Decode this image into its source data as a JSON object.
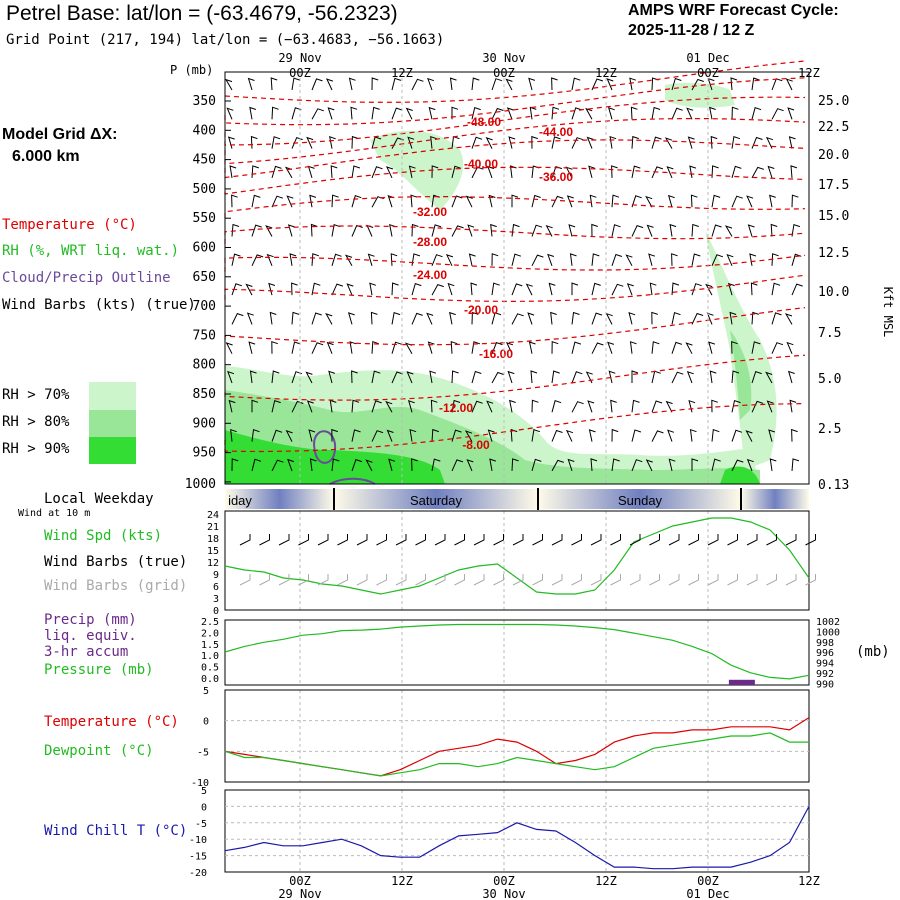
{
  "header": {
    "title": "Petrel Base:  lat/lon = (-63.4679, -56.2323)",
    "grid_point": "Grid Point (217, 194) lat/lon = (−63.4683, −56.1663)",
    "cycle_label": "AMPS WRF Forecast Cycle:",
    "cycle_time": "2025-11-28 / 12  Z"
  },
  "model": {
    "grid_label": "Model Grid ΔX:",
    "grid_value": "6.000 km"
  },
  "legend": {
    "temperature": "Temperature (°C)",
    "rh": "RH (%, WRT liq. wat.)",
    "cloud": "Cloud/Precip Outline",
    "wind": "Wind Barbs (kts) (true)",
    "rh70": "RH > 70%",
    "rh80": "RH > 80%",
    "rh90": "RH > 90%",
    "local_weekday": "Local Weekday",
    "wind_10m": "Wind at 10 m",
    "wind_spd": "Wind Spd (kts)",
    "wind_barbs_true": "Wind Barbs (true)",
    "wind_barbs_grid": "Wind Barbs (grid)",
    "precip": "Precip (mm)",
    "precip2": "liq. equiv.",
    "precip3": "3-hr accum",
    "pressure": "Pressure (mb)",
    "pressure_unit": "(mb)",
    "sfc_temp": "Temperature (°C)",
    "dewpoint": "Dewpoint (°C)",
    "windchill": "Wind Chill T (°C)"
  },
  "colors": {
    "temp": "#dd0000",
    "rh70": "#ccf5cc",
    "rh80": "#99e699",
    "rh90": "#33dd33",
    "cloud": "#6a4a9a",
    "wind_spd": "#22bb22",
    "grid_barb": "#aaaaaa",
    "precip": "#6a2a8a",
    "windchill": "#1a1aaa"
  },
  "chart_data": [
    {
      "type": "line",
      "name": "time-height cross section",
      "x_axis_top": {
        "ticks": [
          "00Z",
          "12Z",
          "00Z",
          "12Z",
          "00Z",
          "12Z"
        ],
        "dates": [
          "29 Nov",
          "30 Nov",
          "01 Dec"
        ]
      },
      "y_label_left": "P (mb)",
      "y_label_right": "Kft MSL",
      "pressure_ticks": [
        "350",
        "400",
        "450",
        "500",
        "550",
        "600",
        "650",
        "700",
        "750",
        "800",
        "850",
        "900",
        "950",
        "1000"
      ],
      "height_ticks": [
        "25.0",
        "22.5",
        "20.0",
        "17.5",
        "15.0",
        "12.5",
        "10.0",
        "7.5",
        "5.0",
        "2.5",
        "0.13"
      ],
      "isotherm_labels": [
        "-48.00",
        "-44.00",
        "-40.00",
        "-36.00",
        "-32.00",
        "-28.00",
        "-24.00",
        "-20.00",
        "-16.00",
        "-12.00",
        "-8.00"
      ]
    },
    {
      "type": "timeline",
      "days": [
        "Friday",
        "Saturday",
        "Sunday"
      ]
    },
    {
      "type": "line",
      "name": "wind speed 10 m",
      "ylim": [
        0,
        24
      ],
      "yticks": [
        "24",
        "21",
        "18",
        "15",
        "12",
        "9",
        "6",
        "3",
        "0"
      ],
      "x_hours": [
        0,
        6,
        12,
        18,
        24,
        30,
        36,
        42,
        48,
        54,
        60,
        66,
        72,
        78,
        84,
        90,
        96,
        102,
        108,
        114,
        120,
        126,
        132,
        138,
        144,
        150,
        156,
        162,
        168,
        174,
        180
      ],
      "values": [
        11,
        10,
        9.5,
        8,
        7.5,
        6.5,
        6,
        5,
        4,
        5,
        6,
        8,
        10,
        11,
        11.5,
        8,
        4.5,
        4,
        4,
        5,
        10,
        17,
        19,
        21,
        22,
        23,
        23,
        22,
        20,
        15,
        8
      ]
    },
    {
      "type": "line",
      "name": "surface pressure and precip",
      "precip_ticks": [
        "2.5",
        "2.0",
        "1.5",
        "1.0",
        "0.5",
        "0.0"
      ],
      "pressure_ticks": [
        "1002",
        "1000",
        "998",
        "996",
        "994",
        "992",
        "990"
      ],
      "pressure_x_hours": [
        0,
        6,
        12,
        18,
        24,
        30,
        36,
        42,
        48,
        54,
        60,
        66,
        72,
        78,
        84,
        90,
        96,
        102,
        108,
        114,
        120,
        126,
        132,
        138,
        144,
        150,
        156,
        162,
        168,
        174,
        180
      ],
      "pressure_values": [
        996.5,
        997.6,
        998.4,
        999.0,
        999.8,
        1000.1,
        1000.7,
        1000.8,
        1001.0,
        1001.4,
        1001.6,
        1001.8,
        1001.9,
        1001.9,
        1001.9,
        1001.9,
        1001.9,
        1001.8,
        1001.6,
        1001.3,
        1000.9,
        1000.2,
        999.5,
        998.8,
        997.6,
        996.2,
        993.9,
        992.4,
        991.5,
        991.2,
        991.9
      ],
      "precip_bars": [
        {
          "x_hour": 159,
          "value": 0.2
        }
      ]
    },
    {
      "type": "line",
      "name": "temperature and dewpoint",
      "yticks": [
        "5",
        "0",
        "-5",
        "-10"
      ],
      "ylim": [
        -10,
        5
      ],
      "x_hours": [
        0,
        6,
        12,
        18,
        24,
        30,
        36,
        42,
        48,
        54,
        60,
        66,
        72,
        78,
        84,
        90,
        96,
        102,
        108,
        114,
        120,
        126,
        132,
        138,
        144,
        150,
        156,
        162,
        168,
        174,
        180
      ],
      "temperature": [
        -5.0,
        -5.5,
        -6.0,
        -6.5,
        -7.0,
        -7.5,
        -8.0,
        -8.5,
        -9.0,
        -8.0,
        -6.5,
        -5.0,
        -4.5,
        -4.0,
        -3.0,
        -3.5,
        -5.0,
        -7.0,
        -6.5,
        -5.5,
        -3.5,
        -2.5,
        -2.0,
        -2.0,
        -1.5,
        -1.5,
        -1.0,
        -1.0,
        -1.0,
        -1.5,
        0.5
      ],
      "dewpoint": [
        -5.0,
        -6.0,
        -6.0,
        -6.5,
        -7.0,
        -7.5,
        -8.0,
        -8.5,
        -9.0,
        -8.5,
        -8.0,
        -7.0,
        -7.0,
        -7.5,
        -7.0,
        -6.0,
        -6.5,
        -7.0,
        -7.5,
        -8.0,
        -7.5,
        -6.0,
        -4.5,
        -4.0,
        -3.5,
        -3.0,
        -2.5,
        -2.5,
        -2.0,
        -3.5,
        -3.5
      ]
    },
    {
      "type": "line",
      "name": "wind chill",
      "yticks": [
        "5",
        "0",
        "-5",
        "-10",
        "-15",
        "-20"
      ],
      "ylim": [
        -20,
        5
      ],
      "x_hours": [
        0,
        6,
        12,
        18,
        24,
        30,
        36,
        42,
        48,
        54,
        60,
        66,
        72,
        78,
        84,
        90,
        96,
        102,
        108,
        114,
        120,
        126,
        132,
        138,
        144,
        150,
        156,
        162,
        168,
        174,
        180
      ],
      "values": [
        -13.5,
        -12.5,
        -11.0,
        -12.0,
        -12.0,
        -11.0,
        -10.0,
        -12.0,
        -15.0,
        -15.5,
        -15.5,
        -12.0,
        -9.0,
        -8.5,
        -8.0,
        -5.0,
        -7.0,
        -7.5,
        -11.0,
        -15.0,
        -18.5,
        -18.5,
        -19.0,
        -19.0,
        -18.5,
        -18.5,
        -18.5,
        -17.0,
        -15.0,
        -11.0,
        0.0
      ]
    }
  ]
}
